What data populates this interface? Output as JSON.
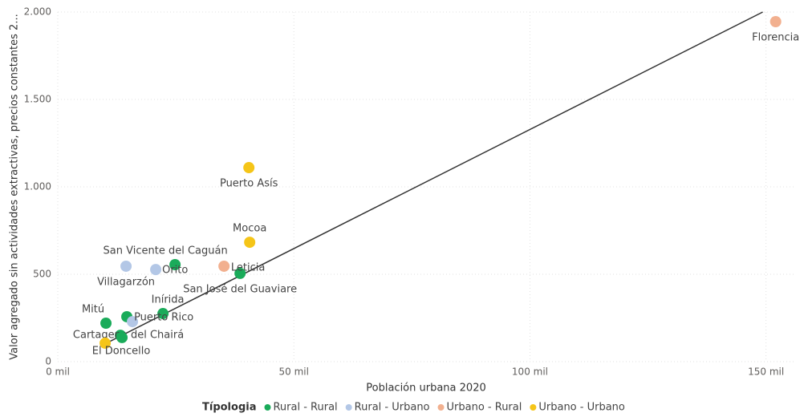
{
  "chart_data": {
    "type": "scatter",
    "x_label": "Población urbana 2020",
    "y_label": "Valor agregado sin actividades extractivas, precios constantes 2...",
    "legend_title": "Típologia",
    "legend": "bottom",
    "grid": true,
    "xlim": [
      0,
      156000
    ],
    "ylim": [
      0,
      2000
    ],
    "xticks": [
      {
        "value": 0,
        "label": "0 mil"
      },
      {
        "value": 50000,
        "label": "50 mil"
      },
      {
        "value": 100000,
        "label": "100 mil"
      },
      {
        "value": 150000,
        "label": "150 mil"
      }
    ],
    "yticks": [
      0,
      500,
      {
        "value": 1000,
        "label": "1.000"
      },
      {
        "value": 1500,
        "label": "1.500"
      },
      {
        "value": 2000,
        "label": "2.000"
      }
    ],
    "trendline": {
      "color": "#333333",
      "x": [
        9500,
        149300
      ],
      "y": [
        95,
        2000
      ]
    },
    "series": [
      {
        "name": "Rural - Rural",
        "color": "#1aab5a",
        "labels": [
          "Mitú",
          null,
          "San Vicente del Caguán",
          "San José del Guaviare",
          "Inírida",
          "Cartagena del Chairá",
          null
        ],
        "x": [
          10204,
          14626,
          24830,
          38605,
          22279,
          13265,
          13605
        ],
        "values": [
          220,
          257,
          555,
          505,
          275,
          151,
          138
        ]
      },
      {
        "name": "Rural - Urbano",
        "color": "#b3c7e6",
        "labels": [
          "Villagarzón",
          "Orito",
          "Puerto Rico"
        ],
        "x": [
          14456,
          20748,
          15816
        ],
        "values": [
          546,
          527,
          229
        ]
      },
      {
        "name": "Urbano - Rural",
        "color": "#f2b08f",
        "labels": [
          "Florencia",
          "Leticia"
        ],
        "x": [
          152040,
          35204
        ],
        "values": [
          1945,
          546
        ]
      },
      {
        "name": "Urbano - Urbano",
        "color": "#f5c518",
        "labels": [
          "Puerto Asís",
          "Mocoa",
          "El Doncello"
        ],
        "x": [
          40476,
          40646,
          10034
        ],
        "values": [
          1110,
          683,
          106
        ]
      }
    ]
  }
}
